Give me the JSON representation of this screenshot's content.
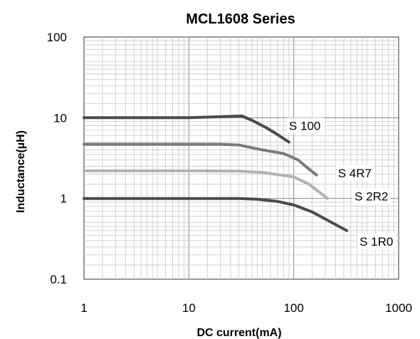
{
  "chart_data": {
    "type": "line",
    "title": "MCL1608 Series",
    "xlabel": "DC current(mA)",
    "ylabel": "Inductance(µH)",
    "xscale": "log",
    "yscale": "log",
    "xlim": [
      1,
      1000
    ],
    "ylim": [
      0.1,
      100
    ],
    "x_tick_labels": [
      "1",
      "10",
      "100",
      "1000"
    ],
    "y_tick_labels": [
      "0.1",
      "1",
      "10",
      "100"
    ],
    "grid": true,
    "series": [
      {
        "name": "S 100",
        "color": "#4a4a4a",
        "points": [
          [
            1,
            10
          ],
          [
            10,
            10
          ],
          [
            20,
            10.3
          ],
          [
            32,
            10.5
          ],
          [
            40,
            9.3
          ],
          [
            55,
            7.5
          ],
          [
            70,
            6.2
          ],
          [
            90,
            5.0
          ]
        ]
      },
      {
        "name": "S 4R7",
        "color": "#7a7a7a",
        "points": [
          [
            1,
            4.7
          ],
          [
            10,
            4.7
          ],
          [
            20,
            4.7
          ],
          [
            30,
            4.6
          ],
          [
            50,
            4.0
          ],
          [
            80,
            3.6
          ],
          [
            110,
            3.0
          ],
          [
            135,
            2.4
          ],
          [
            165,
            1.95
          ]
        ]
      },
      {
        "name": "S 2R2",
        "color": "#b2b2b2",
        "points": [
          [
            1,
            2.2
          ],
          [
            10,
            2.2
          ],
          [
            30,
            2.18
          ],
          [
            50,
            2.1
          ],
          [
            100,
            1.85
          ],
          [
            140,
            1.5
          ],
          [
            175,
            1.2
          ],
          [
            210,
            1.0
          ]
        ]
      },
      {
        "name": "S 1R0",
        "color": "#4a4a4a",
        "points": [
          [
            1,
            1.0
          ],
          [
            10,
            1.0
          ],
          [
            30,
            1.0
          ],
          [
            45,
            0.98
          ],
          [
            70,
            0.92
          ],
          [
            100,
            0.83
          ],
          [
            150,
            0.68
          ],
          [
            220,
            0.52
          ],
          [
            320,
            0.4
          ]
        ]
      }
    ]
  }
}
